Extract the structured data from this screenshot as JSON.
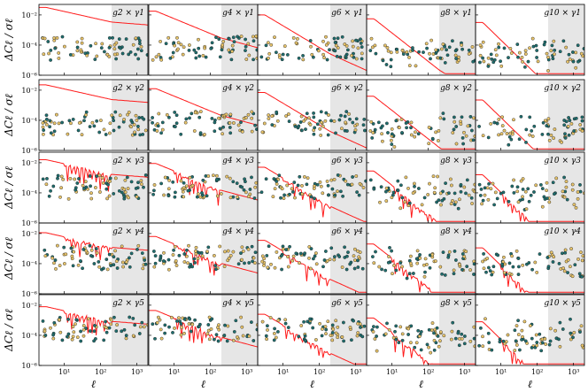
{
  "chart_data": {
    "type": "scatter",
    "layout": {
      "rows": 5,
      "cols": 5
    },
    "xscale": "log",
    "yscale": "log",
    "xlim": [
      2,
      2000
    ],
    "ylim": [
      1e-06,
      0.05
    ],
    "xticks": [
      10,
      100,
      1000
    ],
    "xtick_labels": [
      "10¹",
      "10²",
      "10³"
    ],
    "yticks": [
      1e-06,
      0.0001,
      0.01
    ],
    "ytick_labels": [
      "10⁻⁶",
      "10⁻⁴",
      "10⁻²"
    ],
    "xlabel": "ℓ",
    "ylabel": "ΔCℓ / σℓ",
    "colors": {
      "curve": "#ff1a1a",
      "shade": "#e6e6e6",
      "point_yellow": "#e8c46a",
      "point_teal": "#1f6e6e",
      "point_edge": "#1a1a1a"
    },
    "panels": [
      {
        "label": "g2 × γ1",
        "shade_from": 200
      },
      {
        "label": "g4 × γ1",
        "shade_from": 200
      },
      {
        "label": "g6 × γ1",
        "shade_from": 200
      },
      {
        "label": "g8 × γ1",
        "shade_from": 200
      },
      {
        "label": "g10 × γ1",
        "shade_from": 200
      },
      {
        "label": "g2 × γ2",
        "shade_from": 200
      },
      {
        "label": "g4 × γ2",
        "shade_from": 200
      },
      {
        "label": "g6 × γ2",
        "shade_from": 200
      },
      {
        "label": "g8 × γ2",
        "shade_from": 200
      },
      {
        "label": "g10 × γ2",
        "shade_from": 200
      },
      {
        "label": "g2 × γ3",
        "shade_from": 200
      },
      {
        "label": "g4 × γ3",
        "shade_from": 200
      },
      {
        "label": "g6 × γ3",
        "shade_from": 200
      },
      {
        "label": "g8 × γ3",
        "shade_from": 200
      },
      {
        "label": "g10 × γ3",
        "shade_from": 200
      },
      {
        "label": "g2 × γ4",
        "shade_from": 200
      },
      {
        "label": "g4 × γ4",
        "shade_from": 200
      },
      {
        "label": "g6 × γ4",
        "shade_from": 200
      },
      {
        "label": "g8 × γ4",
        "shade_from": 200
      },
      {
        "label": "g10 × γ4",
        "shade_from": 200
      },
      {
        "label": "g2 × γ5",
        "shade_from": 200
      },
      {
        "label": "g4 × γ5",
        "shade_from": 200
      },
      {
        "label": "g6 × γ5",
        "shade_from": 200
      },
      {
        "label": "g8 × γ5",
        "shade_from": 200
      },
      {
        "label": "g10 × γ5",
        "shade_from": 200
      }
    ]
  }
}
